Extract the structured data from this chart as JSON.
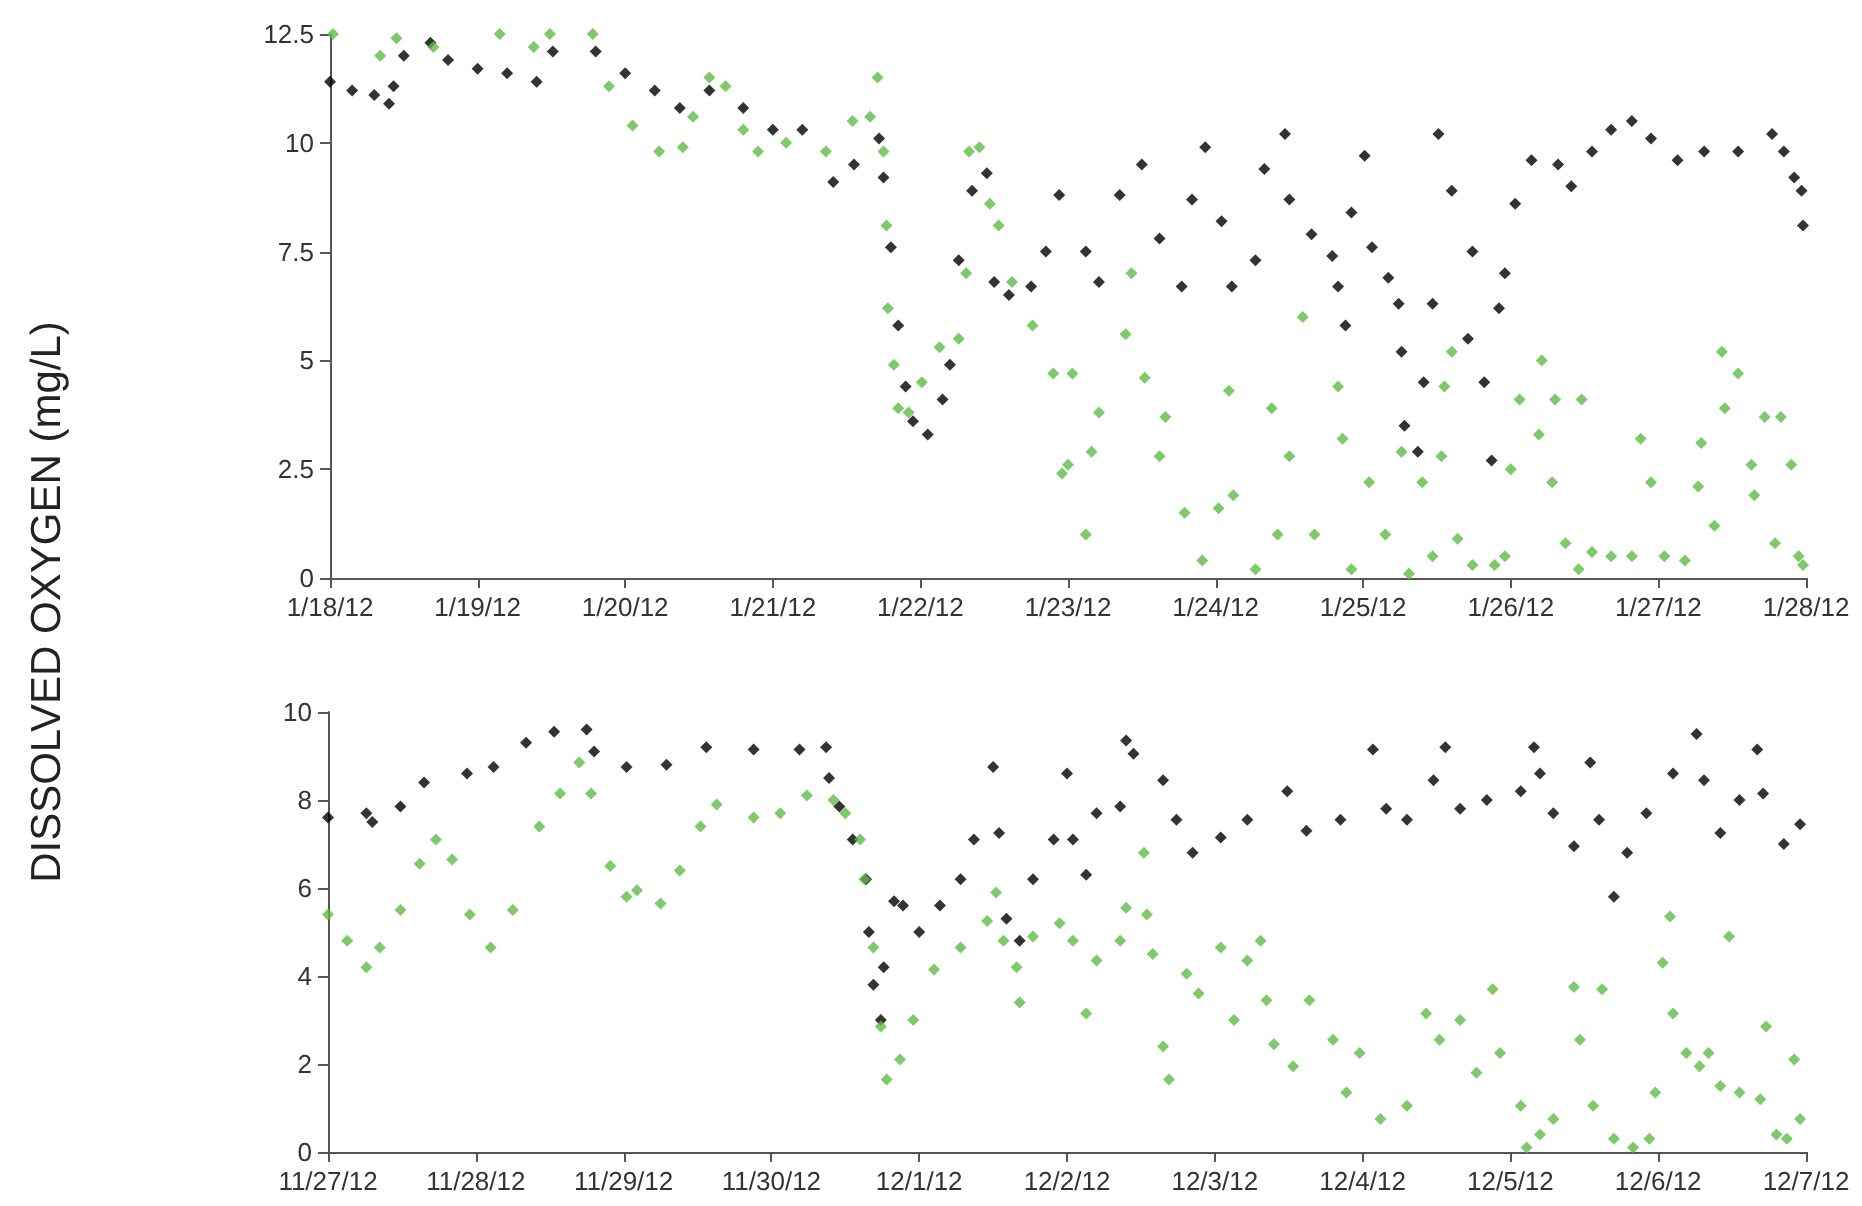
{
  "chart_data": [
    {
      "type": "scatter",
      "ylabel": "DISSOLVED OXYGEN (mg/L)",
      "marker": "diamond",
      "grid": false,
      "xlim": [
        "--01-18",
        "--01-28"
      ],
      "ylim": [
        0,
        12.5
      ],
      "xticks": [
        {
          "value": "--01-18",
          "label": "1/18/12"
        },
        {
          "value": "--01-19",
          "label": "1/19/12"
        },
        {
          "value": "--01-20",
          "label": "1/20/12"
        },
        {
          "value": "--01-21",
          "label": "1/21/12"
        },
        {
          "value": "--01-22",
          "label": "1/22/12"
        },
        {
          "value": "--01-23",
          "label": "1/23/12"
        },
        {
          "value": "--01-24",
          "label": "1/24/12"
        },
        {
          "value": "--01-25",
          "label": "1/25/12"
        },
        {
          "value": "--01-26",
          "label": "1/26/12"
        },
        {
          "value": "--01-27",
          "label": "1/27/12"
        },
        {
          "value": "--01-28",
          "label": "1/28/12"
        }
      ],
      "yticks": [
        0,
        2.5,
        5,
        7.5,
        10,
        12.5
      ],
      "series": [
        {
          "color": "#000000",
          "x": [
            "--01-18T00:00",
            "--01-18T03:36",
            "--01-18T07:12",
            "--01-18T09:36",
            "--01-18T10:20",
            "--01-18T12:00",
            "--01-18T16:20",
            "--01-18T19:12",
            "--01-19T00:00",
            "--01-19T04:48",
            "--01-19T09:36",
            "--01-19T12:14",
            "--01-19T19:12",
            "--01-20T00:00",
            "--01-20T04:48",
            "--01-20T08:53",
            "--01-20T13:41",
            "--01-20T19:12",
            "--01-21T00:00",
            "--01-21T04:48",
            "--01-21T09:50",
            "--01-21T13:12",
            "--01-21T17:17",
            "--01-21T18:00",
            "--01-21T19:12",
            "--01-21T20:24",
            "--01-21T21:36",
            "--01-21T22:48",
            "--01-22T01:12",
            "--01-22T03:36",
            "--01-22T04:48",
            "--01-22T06:14",
            "--01-22T08:24",
            "--01-22T10:48",
            "--01-22T12:00",
            "--01-22T14:24",
            "--01-22T18:00",
            "--01-22T20:24",
            "--01-22T22:34",
            "--01-23T02:53",
            "--01-23T05:02",
            "--01-23T08:24",
            "--01-23T12:00",
            "--01-23T14:53",
            "--01-23T18:29",
            "--01-23T20:10",
            "--01-23T22:19",
            "--01-24T00:58",
            "--01-24T02:38",
            "--01-24T06:29",
            "--01-24T07:55",
            "--01-24T11:17",
            "--01-24T12:00",
            "--01-24T15:36",
            "--01-24T18:58",
            "--01-24T19:55",
            "--01-24T21:07",
            "--01-24T22:05",
            "--01-25T00:14",
            "--01-25T01:26",
            "--01-25T04:05",
            "--01-25T05:46",
            "--01-25T06:14",
            "--01-25T06:43",
            "--01-25T08:53",
            "--01-25T09:50",
            "--01-25T11:17",
            "--01-25T12:14",
            "--01-25T14:24",
            "--01-25T17:02",
            "--01-25T17:46",
            "--01-25T19:41",
            "--01-25T20:53",
            "--01-25T22:05",
            "--01-25T23:02",
            "--01-26T00:43",
            "--01-26T03:22",
            "--01-26T07:41",
            "--01-26T09:50",
            "--01-26T13:12",
            "--01-26T16:19",
            "--01-26T19:41",
            "--01-26T22:48",
            "--01-27T03:07",
            "--01-27T07:26",
            "--01-27T12:58",
            "--01-27T18:29",
            "--01-27T20:24",
            "--01-27T22:05",
            "--01-27T23:17",
            "--01-27T23:31"
          ],
          "values": [
            11.4,
            11.2,
            11.1,
            10.9,
            11.3,
            12.0,
            12.3,
            11.9,
            11.7,
            11.6,
            11.4,
            12.1,
            12.1,
            11.6,
            11.2,
            10.8,
            11.2,
            10.8,
            10.3,
            10.3,
            9.1,
            9.5,
            10.1,
            9.2,
            7.6,
            5.8,
            4.4,
            3.6,
            3.3,
            4.1,
            4.9,
            7.3,
            8.9,
            9.3,
            6.8,
            6.5,
            6.7,
            7.5,
            8.8,
            7.5,
            6.8,
            8.8,
            9.5,
            7.8,
            6.7,
            8.7,
            9.9,
            8.2,
            6.7,
            7.3,
            9.4,
            10.2,
            8.7,
            7.9,
            7.4,
            6.7,
            5.8,
            8.4,
            9.7,
            7.6,
            6.9,
            6.3,
            5.2,
            3.5,
            2.9,
            4.5,
            6.3,
            10.2,
            8.9,
            5.5,
            7.5,
            4.5,
            2.7,
            6.2,
            7.0,
            8.6,
            9.6,
            9.5,
            9.0,
            9.8,
            10.3,
            10.5,
            10.1,
            9.6,
            9.8,
            9.8,
            10.2,
            9.8,
            9.2,
            8.9,
            8.1
          ]
        },
        {
          "color": "#5dbb46",
          "x": [
            "--01-18T00:29",
            "--01-18T08:10",
            "--01-18T10:48",
            "--01-18T16:48",
            "--01-19T03:36",
            "--01-19T09:07",
            "--01-19T11:46",
            "--01-19T18:43",
            "--01-19T21:22",
            "--01-20T01:12",
            "--01-20T05:31",
            "--01-20T09:22",
            "--01-20T11:02",
            "--01-20T13:41",
            "--01-20T16:19",
            "--01-20T19:12",
            "--01-20T21:36",
            "--01-21T02:10",
            "--01-21T08:38",
            "--01-21T12:58",
            "--01-21T15:50",
            "--01-21T17:02",
            "--01-21T18:00",
            "--01-21T18:29",
            "--01-21T18:43",
            "--01-21T19:41",
            "--01-21T20:24",
            "--01-21T22:05",
            "--01-22T00:14",
            "--01-22T03:07",
            "--01-22T06:14",
            "--01-22T07:26",
            "--01-22T07:55",
            "--01-22T09:36",
            "--01-22T11:17",
            "--01-22T12:43",
            "--01-22T14:53",
            "--01-22T18:14",
            "--01-22T21:36",
            "--01-22T23:02",
            "--01-23T00:00",
            "--01-23T00:43",
            "--01-23T02:53",
            "--01-23T03:50",
            "--01-23T05:02",
            "--01-23T09:22",
            "--01-23T10:19",
            "--01-23T12:29",
            "--01-23T14:53",
            "--01-23T15:50",
            "--01-23T18:58",
            "--01-23T21:50",
            "--01-24T00:29",
            "--01-24T02:10",
            "--01-24T02:53",
            "--01-24T06:29",
            "--01-24T09:07",
            "--01-24T10:05",
            "--01-24T12:00",
            "--01-24T14:10",
            "--01-24T16:05",
            "--01-24T19:55",
            "--01-24T20:38",
            "--01-24T22:05",
            "--01-25T00:58",
            "--01-25T03:36",
            "--01-25T06:14",
            "--01-25T07:26",
            "--01-25T09:36",
            "--01-25T11:17",
            "--01-25T12:43",
            "--01-25T13:12",
            "--01-25T14:24",
            "--01-25T15:22",
            "--01-25T17:46",
            "--01-25T21:22",
            "--01-25T23:02",
            "--01-26T00:00",
            "--01-26T01:26",
            "--01-26T04:34",
            "--01-26T05:02",
            "--01-26T06:43",
            "--01-26T07:12",
            "--01-26T08:53",
            "--01-26T11:02",
            "--01-26T11:31",
            "--01-26T13:12",
            "--01-26T16:19",
            "--01-26T19:41",
            "--01-26T21:07",
            "--01-26T22:48",
            "--01-27T00:58",
            "--01-27T04:19",
            "--01-27T06:29",
            "--01-27T06:58",
            "--01-27T09:07",
            "--01-27T10:19",
            "--01-27T10:48",
            "--01-27T12:58",
            "--01-27T15:07",
            "--01-27T15:36",
            "--01-27T17:17",
            "--01-27T18:58",
            "--01-27T19:55",
            "--01-27T21:36",
            "--01-27T22:48",
            "--01-27T23:31"
          ],
          "values": [
            12.5,
            12.0,
            12.4,
            12.2,
            12.5,
            12.2,
            12.5,
            12.5,
            11.3,
            10.4,
            9.8,
            9.9,
            10.6,
            11.5,
            11.3,
            10.3,
            9.8,
            10.0,
            9.8,
            10.5,
            10.6,
            11.5,
            9.8,
            8.1,
            6.2,
            4.9,
            3.9,
            3.8,
            4.5,
            5.3,
            5.5,
            7.0,
            9.8,
            9.9,
            8.6,
            8.1,
            6.8,
            5.8,
            4.7,
            2.4,
            2.6,
            4.7,
            1.0,
            2.9,
            3.8,
            5.6,
            7.0,
            4.6,
            2.8,
            3.7,
            1.5,
            0.4,
            1.6,
            4.3,
            1.9,
            0.2,
            3.9,
            1.0,
            2.8,
            6.0,
            1.0,
            4.4,
            3.2,
            0.2,
            2.2,
            1.0,
            2.9,
            0.1,
            2.2,
            0.5,
            2.8,
            4.4,
            5.2,
            0.9,
            0.3,
            0.3,
            0.5,
            2.5,
            4.1,
            3.3,
            5.0,
            2.2,
            4.1,
            0.8,
            0.2,
            4.1,
            0.6,
            0.5,
            0.5,
            3.2,
            2.2,
            0.5,
            0.4,
            2.1,
            3.1,
            1.2,
            5.2,
            3.9,
            4.7,
            2.6,
            1.9,
            3.7,
            0.8,
            3.7,
            2.6,
            0.5,
            0.3
          ]
        }
      ]
    },
    {
      "type": "scatter",
      "marker": "diamond",
      "grid": false,
      "xlim": [
        "--11-27",
        "--12-07"
      ],
      "ylim": [
        0,
        10
      ],
      "xticks": [
        {
          "value": "--11-27",
          "label": "11/27/12"
        },
        {
          "value": "--11-28",
          "label": "11/28/12"
        },
        {
          "value": "--11-29",
          "label": "11/29/12"
        },
        {
          "value": "--11-30",
          "label": "11/30/12"
        },
        {
          "value": "--12-01",
          "label": "12/1/12"
        },
        {
          "value": "--12-02",
          "label": "12/2/12"
        },
        {
          "value": "--12-03",
          "label": "12/3/12"
        },
        {
          "value": "--12-04",
          "label": "12/4/12"
        },
        {
          "value": "--12-05",
          "label": "12/5/12"
        },
        {
          "value": "--12-06",
          "label": "12/6/12"
        },
        {
          "value": "--12-07",
          "label": "12/7/12"
        }
      ],
      "yticks": [
        0,
        2,
        4,
        6,
        8,
        10
      ],
      "series": [
        {
          "color": "#000000",
          "x": [
            "--11-27T00:00",
            "--11-27T06:14",
            "--11-27T07:12",
            "--11-27T11:46",
            "--11-27T15:36",
            "--11-27T22:34",
            "--11-28T02:53",
            "--11-28T08:10",
            "--11-28T12:43",
            "--11-28T18:00",
            "--11-28T19:12",
            "--11-29T00:29",
            "--11-29T06:58",
            "--11-29T13:26",
            "--11-29T21:07",
            "--11-30T04:34",
            "--11-30T08:53",
            "--11-30T09:22",
            "--11-30T11:02",
            "--11-30T13:12",
            "--11-30T15:22",
            "--11-30T15:50",
            "--11-30T16:34",
            "--11-30T17:46",
            "--11-30T18:14",
            "--11-30T19:55",
            "--11-30T21:22",
            "--12-01T00:00",
            "--12-01T03:22",
            "--12-01T06:43",
            "--12-01T08:53",
            "--12-01T12:00",
            "--12-01T12:58",
            "--12-01T14:10",
            "--12-01T16:19",
            "--12-01T18:29",
            "--12-01T21:50",
            "--12-02T00:00",
            "--12-02T00:58",
            "--12-02T03:07",
            "--12-02T04:48",
            "--12-02T08:38",
            "--12-02T09:36",
            "--12-02T10:48",
            "--12-02T15:36",
            "--12-02T17:46",
            "--12-02T20:24",
            "--12-03T00:58",
            "--12-03T05:17",
            "--12-03T11:46",
            "--12-03T14:53",
            "--12-03T20:24",
            "--12-04T01:41",
            "--12-04T03:50",
            "--12-04T07:12",
            "--12-04T11:31",
            "--12-04T13:26",
            "--12-04T15:50",
            "--12-04T20:10",
            "--12-05T01:41",
            "--12-05T03:50",
            "--12-05T04:48",
            "--12-05T06:58",
            "--12-05T10:19",
            "--12-05T12:58",
            "--12-05T14:24",
            "--12-05T16:48",
            "--12-05T18:58",
            "--12-05T22:05",
            "--12-06T02:24",
            "--12-06T06:14",
            "--12-06T07:26",
            "--12-06T10:05",
            "--12-06T13:12",
            "--12-06T16:05",
            "--12-06T17:02",
            "--12-06T20:24",
            "--12-06T23:02"
          ],
          "values": [
            7.6,
            7.7,
            7.5,
            7.85,
            8.4,
            8.6,
            8.75,
            9.3,
            9.55,
            9.6,
            9.1,
            8.75,
            8.8,
            9.2,
            9.15,
            9.15,
            9.2,
            8.5,
            7.85,
            7.1,
            6.2,
            5.0,
            3.8,
            3.0,
            4.2,
            5.7,
            5.6,
            5.0,
            5.6,
            6.2,
            7.1,
            8.75,
            7.25,
            5.3,
            4.8,
            6.2,
            7.1,
            8.6,
            7.1,
            6.3,
            7.7,
            7.85,
            9.35,
            9.05,
            8.45,
            7.55,
            6.8,
            7.15,
            7.55,
            8.2,
            7.3,
            7.55,
            9.15,
            7.8,
            7.55,
            8.45,
            9.2,
            7.8,
            8.0,
            8.2,
            9.2,
            8.6,
            7.7,
            6.95,
            8.85,
            7.55,
            5.8,
            6.8,
            7.7,
            8.6,
            9.5,
            8.45,
            7.25,
            8.0,
            9.15,
            8.15,
            7.0,
            7.45
          ]
        },
        {
          "color": "#5dbb46",
          "x": [
            "--11-27T00:00",
            "--11-27T03:07",
            "--11-27T06:14",
            "--11-27T08:24",
            "--11-27T11:46",
            "--11-27T14:53",
            "--11-27T17:31",
            "--11-27T20:10",
            "--11-27T23:02",
            "--11-28T02:24",
            "--11-28T06:00",
            "--11-28T10:19",
            "--11-28T13:41",
            "--11-28T16:48",
            "--11-28T18:43",
            "--11-28T21:50",
            "--11-29T00:29",
            "--11-29T02:10",
            "--11-29T06:00",
            "--11-29T09:07",
            "--11-29T12:29",
            "--11-29T15:07",
            "--11-29T21:07",
            "--11-30T01:26",
            "--11-30T05:46",
            "--11-30T10:05",
            "--11-30T12:00",
            "--11-30T14:24",
            "--11-30T15:07",
            "--11-30T16:34",
            "--11-30T17:46",
            "--11-30T18:43",
            "--11-30T20:53",
            "--11-30T23:02",
            "--12-01T02:24",
            "--12-01T06:43",
            "--12-01T11:02",
            "--12-01T12:29",
            "--12-01T13:41",
            "--12-01T15:50",
            "--12-01T16:19",
            "--12-01T18:29",
            "--12-01T22:48",
            "--12-02T00:58",
            "--12-02T03:07",
            "--12-02T04:48",
            "--12-02T08:38",
            "--12-02T09:36",
            "--12-02T12:29",
            "--12-02T12:58",
            "--12-02T13:55",
            "--12-02T15:36",
            "--12-02T16:34",
            "--12-02T19:26",
            "--12-02T21:22",
            "--12-03T00:58",
            "--12-03T03:07",
            "--12-03T05:17",
            "--12-03T07:26",
            "--12-03T08:24",
            "--12-03T09:36",
            "--12-03T12:43",
            "--12-03T15:22",
            "--12-03T19:12",
            "--12-03T21:22",
            "--12-03T23:31",
            "--12-04T02:53",
            "--12-04T07:12",
            "--12-04T10:19",
            "--12-04T12:29",
            "--12-04T15:50",
            "--12-04T18:29",
            "--12-04T21:07",
            "--12-04T22:19",
            "--12-05T01:41",
            "--12-05T02:38",
            "--12-05T04:48",
            "--12-05T06:58",
            "--12-05T10:19",
            "--12-05T11:17",
            "--12-05T13:26",
            "--12-05T14:53",
            "--12-05T16:48",
            "--12-05T19:55",
            "--12-05T22:34",
            "--12-05T23:31",
            "--12-06T00:43",
            "--12-06T01:55",
            "--12-06T02:24",
            "--12-06T04:34",
            "--12-06T06:43",
            "--12-06T08:10",
            "--12-06T10:05",
            "--12-06T11:31",
            "--12-06T13:12",
            "--12-06T16:34",
            "--12-06T17:31",
            "--12-06T19:12",
            "--12-06T20:53",
            "--12-06T22:05",
            "--12-06T23:02"
          ],
          "values": [
            5.4,
            4.8,
            4.2,
            4.65,
            5.5,
            6.55,
            7.1,
            6.65,
            5.4,
            4.65,
            5.5,
            7.4,
            8.15,
            8.85,
            8.15,
            6.5,
            5.8,
            5.95,
            5.65,
            6.4,
            7.4,
            7.9,
            7.6,
            7.7,
            8.1,
            8.0,
            7.7,
            7.1,
            6.2,
            4.65,
            2.85,
            1.65,
            2.1,
            3.0,
            4.15,
            4.65,
            5.25,
            5.9,
            4.8,
            4.2,
            3.4,
            4.9,
            5.2,
            4.8,
            3.15,
            4.35,
            4.8,
            5.55,
            6.8,
            5.4,
            4.5,
            2.4,
            1.65,
            4.05,
            3.6,
            4.65,
            3.0,
            4.35,
            4.8,
            3.45,
            2.45,
            1.95,
            3.45,
            2.55,
            1.35,
            2.25,
            0.75,
            1.05,
            3.15,
            2.55,
            3.0,
            1.8,
            3.7,
            2.25,
            1.05,
            0.1,
            0.4,
            0.75,
            3.75,
            2.55,
            1.05,
            3.7,
            0.3,
            0.1,
            0.3,
            1.35,
            4.3,
            5.35,
            3.15,
            2.25,
            1.95,
            2.25,
            1.5,
            4.9,
            1.35,
            1.2,
            2.85,
            0.4,
            0.3,
            2.1,
            0.75
          ]
        }
      ]
    }
  ]
}
